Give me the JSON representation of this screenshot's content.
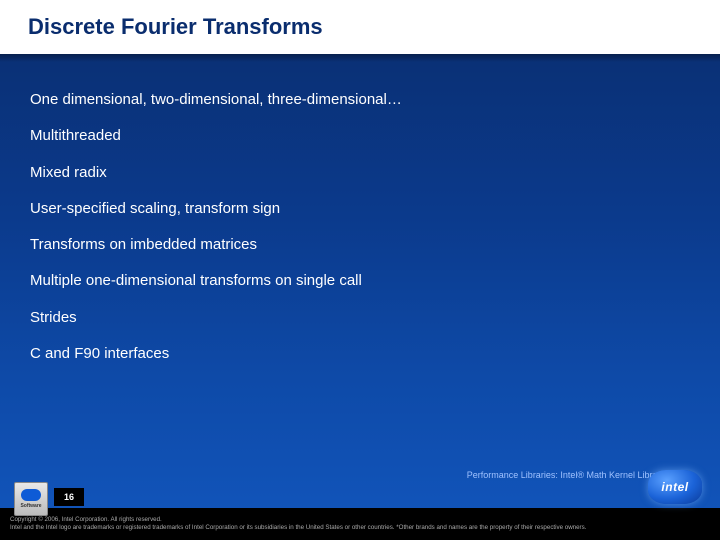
{
  "title": "Discrete Fourier Transforms",
  "bullets": [
    "One dimensional, two-dimensional, three-dimensional…",
    "Multithreaded",
    "Mixed radix",
    "User-specified scaling, transform sign",
    "Transforms on imbedded matrices",
    "Multiple one-dimensional transforms on single call",
    "Strides",
    "C and F90 interfaces"
  ],
  "footnote": "Performance Libraries: Intel® Math Kernel Library (MKL)",
  "page_number": "16",
  "copyright_line1": "Copyright © 2006, Intel Corporation. All rights reserved.",
  "copyright_line2": "Intel and the Intel logo are trademarks or registered trademarks of Intel Corporation or its subsidiaries in the United States or other countries. *Other brands and names are the property of their respective owners.",
  "badge_text": "Software",
  "logo_text": "intel"
}
